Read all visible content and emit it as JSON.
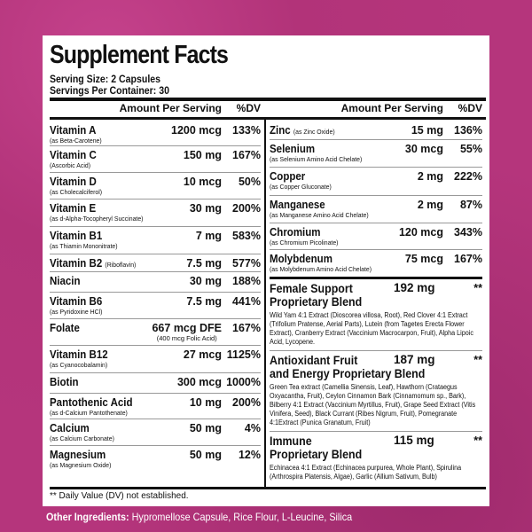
{
  "title": "Supplement Facts",
  "serving_size": "Serving Size: 2 Capsules",
  "servings_per_container": "Servings Per Container: 30",
  "header": {
    "amount": "Amount Per Serving",
    "dv": "%DV"
  },
  "left": [
    {
      "name": "Vitamin A",
      "source": "(as Beta-Carotene)",
      "amount": "1200 mcg",
      "dv": "133%"
    },
    {
      "name": "Vitamin C",
      "source": "(Ascorbic Acid)",
      "amount": "150 mg",
      "dv": "167%"
    },
    {
      "name": "Vitamin D",
      "source": "(as Cholecalciferol)",
      "amount": "10 mcg",
      "dv": "50%"
    },
    {
      "name": "Vitamin E",
      "source": "(as d-Alpha-Tocopheryl Succinate)",
      "amount": "30 mg",
      "dv": "200%"
    },
    {
      "name": "Vitamin B1",
      "source": "(as Thiamin Mononitrate)",
      "amount": "7 mg",
      "dv": "583%"
    },
    {
      "name": "Vitamin B2",
      "inline_source": "(Riboflavin)",
      "amount": "7.5 mg",
      "dv": "577%"
    },
    {
      "name": "Niacin",
      "amount": "30 mg",
      "dv": "188%"
    },
    {
      "name": "Vitamin B6",
      "source": "(as Pyridoxine HCl)",
      "amount": "7.5 mg",
      "dv": "441%"
    },
    {
      "name": "Folate",
      "amount": "667 mcg DFE",
      "amount_note": "(400 mcg Folic Acid)",
      "dv": "167%"
    },
    {
      "name": "Vitamin B12",
      "source": "(as Cyanocobalamin)",
      "amount": "27 mcg",
      "dv": "1125%"
    },
    {
      "name": "Biotin",
      "amount": "300 mcg",
      "dv": "1000%"
    },
    {
      "name": "Pantothenic Acid",
      "source": "(as d-Calcium Pantothenate)",
      "amount": "10 mg",
      "dv": "200%"
    },
    {
      "name": "Calcium",
      "source": "(as Calcium Carbonate)",
      "amount": "50 mg",
      "dv": "4%"
    },
    {
      "name": "Magnesium",
      "source": "(as Magnesium Oxide)",
      "amount": "50 mg",
      "dv": "12%"
    }
  ],
  "right": [
    {
      "name": "Zinc",
      "inline_source": "(as Zinc Oxide)",
      "amount": "15 mg",
      "dv": "136%"
    },
    {
      "name": "Selenium",
      "source": "(as Selenium Amino Acid Chelate)",
      "amount": "30 mcg",
      "dv": "55%"
    },
    {
      "name": "Copper",
      "source": "(as Copper Gluconate)",
      "amount": "2 mg",
      "dv": "222%"
    },
    {
      "name": "Manganese",
      "source": "(as Manganese Amino Acid Chelate)",
      "amount": "2 mg",
      "dv": "87%"
    },
    {
      "name": "Chromium",
      "source": "(as Chromium Picolinate)",
      "amount": "120 mcg",
      "dv": "343%"
    },
    {
      "name": "Molybdenum",
      "source": "(as Molybdenum Amino Acid Chelate)",
      "amount": "75 mcg",
      "dv": "167%"
    }
  ],
  "blends": [
    {
      "name_line1": "Female Support",
      "name_line2": "Proprietary Blend",
      "amount": "192 mg",
      "dv": "**",
      "ingredients": "Wild Yam 4:1 Extract (Dioscorea villosa, Root), Red Clover 4:1 Extract (Trifolium Pratense, Aerial Parts), Lutein (from Tagetes Erecta Flower Extract), Cranberry Extract (Vaccinium Macrocarpon, Fruit), Alpha Lipoic Acid, Lycopene."
    },
    {
      "name_line1": "Antioxidant Fruit",
      "name_line2": "and Energy Proprietary Blend",
      "amount": "187 mg",
      "dv": "**",
      "ingredients": "Green Tea extract (Camellia Sinensis, Leaf), Hawthorn (Crataegus Oxyacantha, Fruit), Ceylon Cinnamon Bark (Cinnamomum sp., Bark), Bilberry 4:1 Extract (Vaccinium Myrtillus, Fruit), Grape Seed Extract (Vitis Vinifera, Seed), Black Currant (Ribes Nigrum, Fruit), Pomegranate 4:1Extract (Punica Granatum, Fruit)"
    },
    {
      "name_line1": "Immune",
      "name_line2": "Proprietary Blend",
      "amount": "115 mg",
      "dv": "**",
      "ingredients": "Echinacea 4:1 Extract (Echinacea purpurea, Whole Plant), Spirulina (Arthrospira Platensis, Algae), Garlic (Allium Sativum, Bulb)"
    }
  ],
  "footnote": "** Daily Value (DV) not established.",
  "other_ingredients": {
    "label": "Other Ingredients:",
    "value": " Hypromellose Capsule, Rice Flour, L-Leucine, Silica"
  },
  "colors": {
    "background": "#b5357c",
    "panel": "#ffffff",
    "text": "#111111"
  }
}
